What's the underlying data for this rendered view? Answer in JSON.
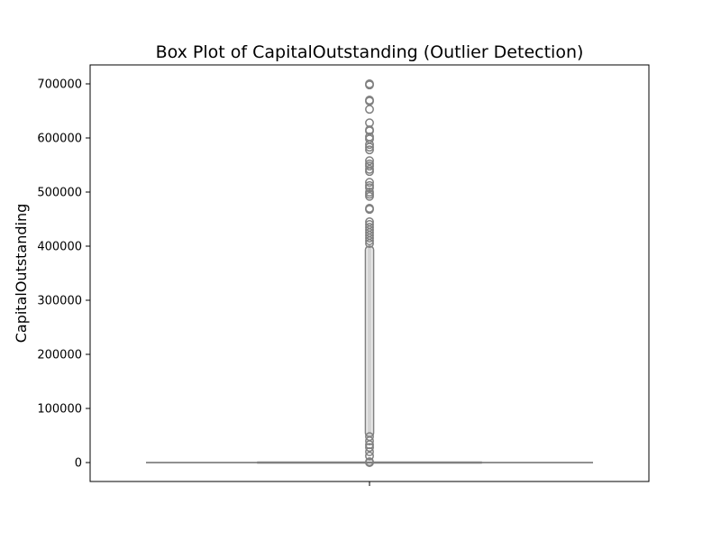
{
  "chart_data": {
    "type": "box",
    "title": "Box Plot of CapitalOutstanding (Outlier Detection)",
    "xlabel": "",
    "ylabel": "CapitalOutstanding",
    "ylim": [
      -35000,
      735000
    ],
    "y_ticks": [
      0,
      100000,
      200000,
      300000,
      400000,
      500000,
      600000,
      700000
    ],
    "y_tick_labels": [
      "0",
      "100000",
      "200000",
      "300000",
      "400000",
      "500000",
      "600000",
      "700000"
    ],
    "box_color": "#808080",
    "grid": false,
    "box": {
      "whisker_low": 0,
      "q1": 0,
      "median": 0,
      "q3": 0,
      "whisker_high": 0
    },
    "outliers_dense_range": [
      48000,
      400000
    ],
    "outliers": [
      0,
      1500,
      12000,
      20000,
      28000,
      33000,
      40000,
      48000,
      405000,
      410000,
      415000,
      420000,
      425000,
      430000,
      435000,
      440000,
      445000,
      468000,
      470000,
      492000,
      496000,
      500000,
      508000,
      512000,
      518000,
      538000,
      542000,
      548000,
      552000,
      558000,
      578000,
      583000,
      588000,
      598000,
      602000,
      613000,
      615000,
      628000,
      653000,
      668000,
      670000,
      698000,
      700000
    ]
  }
}
